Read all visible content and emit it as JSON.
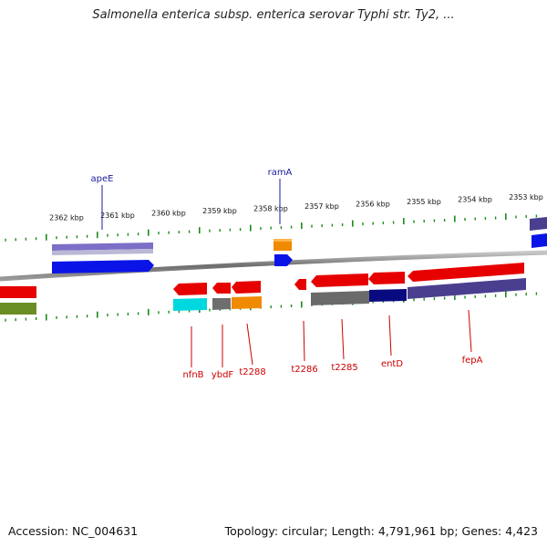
{
  "title": "Salmonella enterica subsp. enterica serovar Typhi str. Ty2, ...",
  "footer": {
    "accession": "Accession: NC_004631",
    "topology": "Topology: circular; Length: 4,791,961 bp; Genes: 4,423"
  },
  "colors": {
    "backbone": "#808080",
    "tick": "#1a8a1a",
    "top_label": "#1a1aa0",
    "bottom_label": "#cc0000"
  },
  "kbp_labels": [
    "2362 kbp",
    "2361 kbp",
    "2360 kbp",
    "2359 kbp",
    "2358 kbp",
    "2357 kbp",
    "2356 kbp",
    "2355 kbp",
    "2354 kbp",
    "2353 kbp"
  ],
  "top_gene_labels": [
    "apeE",
    "ramA"
  ],
  "bottom_gene_labels": [
    "nfnB",
    "ybdF",
    "t2288",
    "t2286",
    "t2285",
    "entD",
    "fepA"
  ]
}
